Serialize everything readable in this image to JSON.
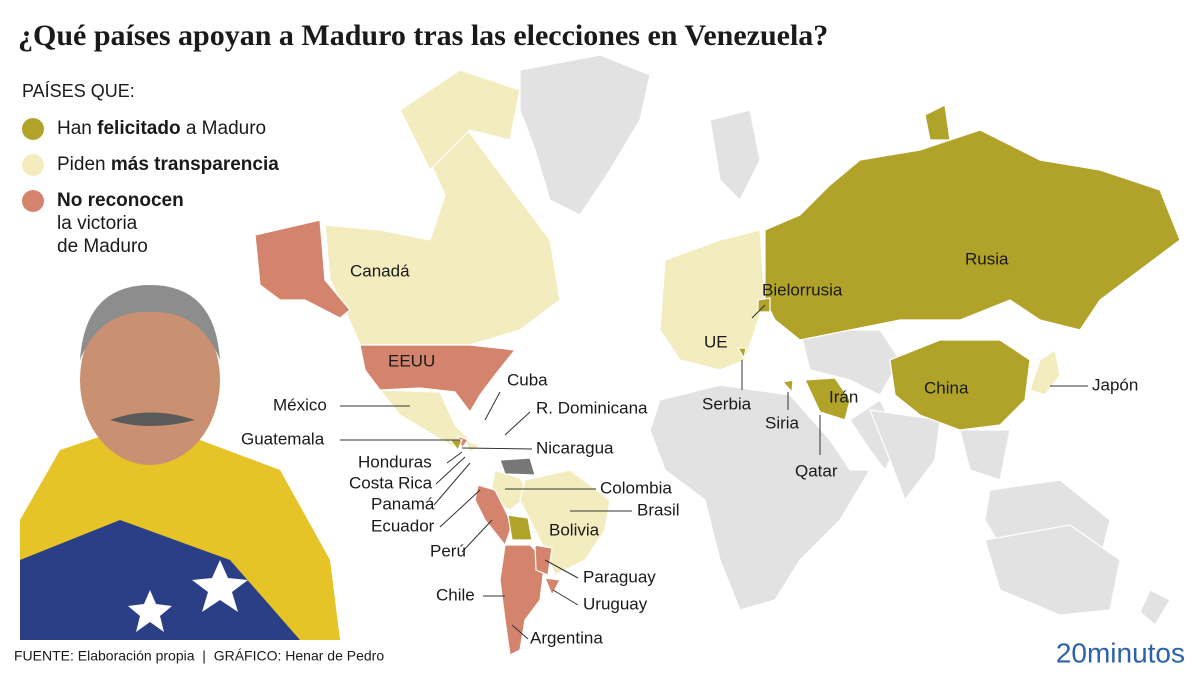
{
  "title": "¿Qué países apoyan a Maduro tras las elecciones en Venezuela?",
  "legend": {
    "heading": "PAÍSES QUE:",
    "items": [
      {
        "color": "#b1a32a",
        "parts": [
          "Han ",
          "felicitado",
          " a Maduro"
        ]
      },
      {
        "color": "#f3ecbf",
        "parts": [
          "Piden ",
          "más transparencia"
        ]
      },
      {
        "color": "#d4846d",
        "lines": [
          "No reconocen",
          "la victoria",
          "de Maduro"
        ]
      }
    ]
  },
  "labels": [
    "Canadá",
    "EEUU",
    "México",
    "Cuba",
    "R. Dominicana",
    "Guatemala",
    "Nicaragua",
    "Honduras",
    "Costa Rica",
    "Colombia",
    "Panamá",
    "Brasil",
    "Ecuador",
    "Bolivia",
    "Perú",
    "Paraguay",
    "Chile",
    "Uruguay",
    "Argentina",
    "Rusia",
    "Bielorrusia",
    "UE",
    "China",
    "Irán",
    "Japón",
    "Serbia",
    "Siria",
    "Qatar"
  ],
  "source": "FUENTE: Elaboración propia  |  GRÁFICO: Henar de Pedro",
  "logo": "20minutos"
}
